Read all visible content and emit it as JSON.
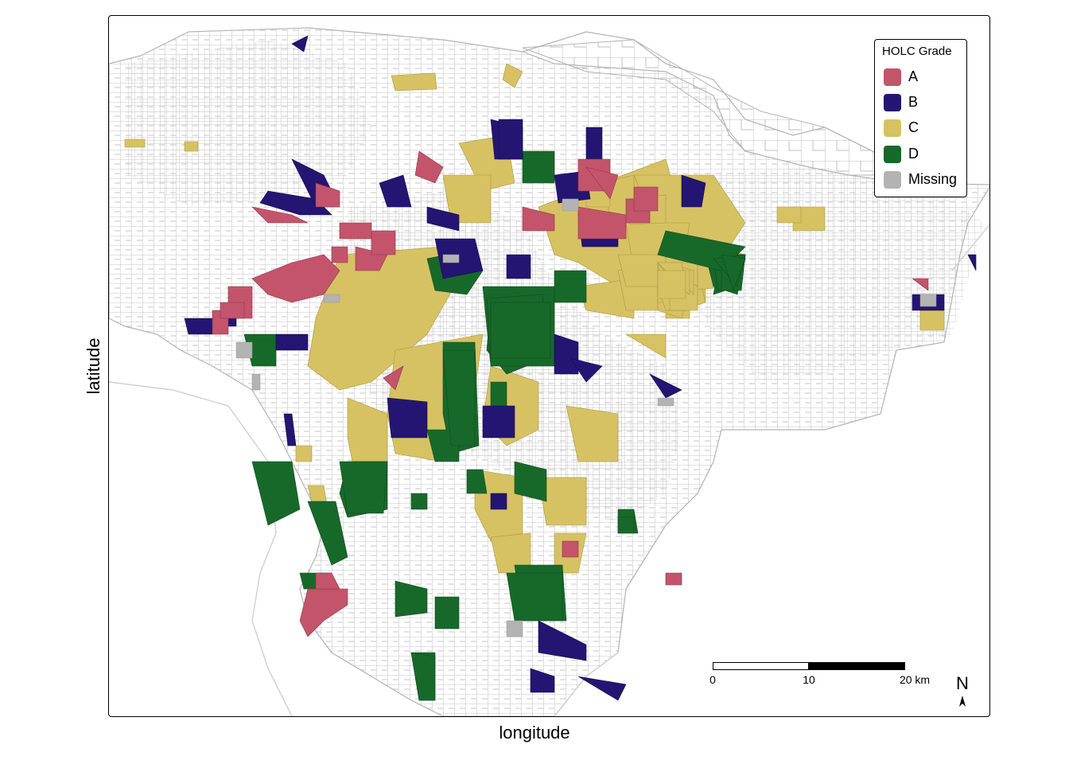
{
  "axes": {
    "x_title": "longitude",
    "y_title": "latitude"
  },
  "legend": {
    "title": "HOLC Grade",
    "items": [
      {
        "label": "A",
        "color": "#c4546b"
      },
      {
        "label": "B",
        "color": "#241573"
      },
      {
        "label": "C",
        "color": "#d6c263"
      },
      {
        "label": "D",
        "color": "#17692a"
      },
      {
        "label": "Missing",
        "color": "#b3b3b3"
      }
    ]
  },
  "scale_bar": {
    "ticks": [
      "0",
      "10",
      "20 km"
    ]
  },
  "north_arrow": {
    "label": "N"
  },
  "colors": {
    "tract_outline": "#b3b3b3",
    "boundary_light": "#d0d0d0"
  }
}
